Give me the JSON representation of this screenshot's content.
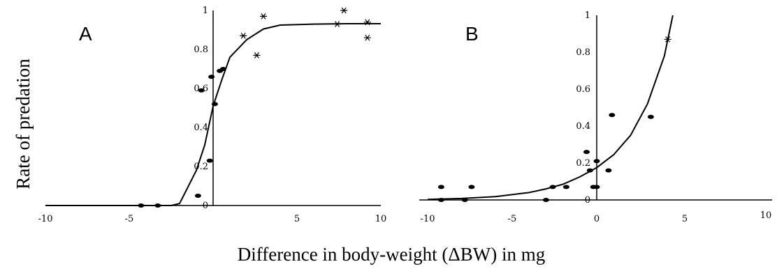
{
  "figure": {
    "ylabel": "Rate of predation",
    "xlabel": "Difference in body-weight (ΔBW) in mg"
  },
  "chart_data": [
    {
      "type": "scatter",
      "panel": "A",
      "xlim": [
        -10,
        10
      ],
      "ylim": [
        0,
        1
      ],
      "x_ticks": [
        -10,
        -5,
        0,
        5,
        10
      ],
      "y_ticks": [
        0,
        0.2,
        0.4,
        0.6,
        0.8,
        1
      ],
      "x_tick_labels": [
        "-10",
        "-5",
        "0",
        "5",
        "10"
      ],
      "y_tick_labels": [
        "0",
        "0.2",
        "0.4",
        "0.6",
        "0.8",
        "1"
      ],
      "dots": [
        [
          -4.3,
          0.0
        ],
        [
          -3.3,
          0.0
        ],
        [
          -0.9,
          0.05
        ],
        [
          -0.7,
          0.59
        ],
        [
          -0.2,
          0.23
        ],
        [
          -0.1,
          0.66
        ],
        [
          0.1,
          0.52
        ],
        [
          0.4,
          0.69
        ],
        [
          0.6,
          0.7
        ]
      ],
      "stars": [
        [
          1.8,
          0.87
        ],
        [
          2.6,
          0.77
        ],
        [
          3.0,
          0.97
        ],
        [
          7.4,
          0.93
        ],
        [
          7.8,
          1.0
        ],
        [
          9.2,
          0.94
        ],
        [
          9.2,
          0.86
        ]
      ],
      "fit": [
        [
          -10,
          0.0
        ],
        [
          -2.5,
          0.0
        ],
        [
          -2.0,
          0.01
        ],
        [
          -1.0,
          0.18
        ],
        [
          -0.5,
          0.31
        ],
        [
          0.0,
          0.51
        ],
        [
          0.5,
          0.64
        ],
        [
          1.0,
          0.76
        ],
        [
          2.0,
          0.85
        ],
        [
          3.0,
          0.905
        ],
        [
          4.0,
          0.925
        ],
        [
          6.0,
          0.93
        ],
        [
          8.0,
          0.932
        ],
        [
          10.0,
          0.932
        ]
      ]
    },
    {
      "type": "scatter",
      "panel": "B",
      "xlim": [
        -10,
        10
      ],
      "ylim": [
        0,
        1
      ],
      "x_ticks": [
        -10,
        -5,
        0,
        5,
        10
      ],
      "y_ticks": [
        0,
        0.2,
        0.4,
        0.6,
        0.8,
        1
      ],
      "x_tick_labels": [
        "-10",
        "-5",
        "0",
        "5",
        "10"
      ],
      "y_tick_labels": [
        "0",
        "0.2",
        "0.4",
        "0.6",
        "0.8",
        "1"
      ],
      "dots": [
        [
          -9.2,
          0.07
        ],
        [
          -9.2,
          0.0
        ],
        [
          -7.8,
          0.0
        ],
        [
          -7.4,
          0.07
        ],
        [
          -3.0,
          0.0
        ],
        [
          -2.6,
          0.07
        ],
        [
          -1.8,
          0.07
        ],
        [
          -0.6,
          0.26
        ],
        [
          -0.4,
          0.16
        ],
        [
          -0.2,
          0.07
        ],
        [
          0.0,
          0.07
        ],
        [
          0.0,
          0.21
        ],
        [
          0.7,
          0.16
        ],
        [
          0.9,
          0.46
        ],
        [
          3.2,
          0.45
        ]
      ],
      "stars": [
        [
          4.2,
          0.87
        ]
      ],
      "fit": [
        [
          -10,
          0.003
        ],
        [
          -8,
          0.008
        ],
        [
          -6,
          0.018
        ],
        [
          -4,
          0.04
        ],
        [
          -3,
          0.06
        ],
        [
          -2,
          0.085
        ],
        [
          -1,
          0.125
        ],
        [
          0,
          0.175
        ],
        [
          1,
          0.245
        ],
        [
          2,
          0.35
        ],
        [
          3,
          0.52
        ],
        [
          4,
          0.78
        ],
        [
          4.5,
          1.0
        ]
      ]
    }
  ],
  "panels": {
    "a": {
      "label": "A",
      "x_tick_labels": [
        "-10",
        "-5",
        "0",
        "5",
        "10"
      ],
      "y_tick_labels": [
        "0",
        "0.2",
        "0.4",
        "0.6",
        "0.8",
        "1"
      ]
    },
    "b": {
      "label": "B",
      "x_tick_labels": [
        "-10",
        "-5",
        "0",
        "5",
        "10"
      ],
      "y_tick_labels": [
        "0",
        "0.2",
        "0.4",
        "0.6",
        "0.8",
        "1"
      ]
    }
  }
}
